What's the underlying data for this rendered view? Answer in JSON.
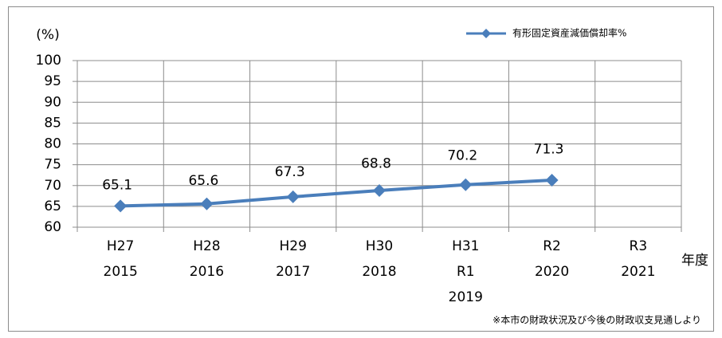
{
  "chart_data": {
    "type": "line",
    "y_label": "(%)",
    "x_label": "年度",
    "note": "※本市の財政状況及び今後の財政収支見通しより",
    "categories": [
      [
        "H27",
        "2015"
      ],
      [
        "H28",
        "2016"
      ],
      [
        "H29",
        "2017"
      ],
      [
        "H30",
        "2018"
      ],
      [
        "H31",
        "R1",
        "2019"
      ],
      [
        "R2",
        "2020"
      ],
      [
        "R3",
        "2021"
      ]
    ],
    "series": [
      {
        "name": "有形固定資産減価償却率%",
        "color": "#4a7ebb",
        "values": [
          65.1,
          65.6,
          67.3,
          68.8,
          70.2,
          71.3,
          null
        ]
      }
    ],
    "ylim": [
      60,
      100
    ],
    "yticks": [
      60,
      65,
      70,
      75,
      80,
      85,
      90,
      95,
      100
    ],
    "grid": true,
    "legend": "top-right",
    "data_labels": true
  }
}
